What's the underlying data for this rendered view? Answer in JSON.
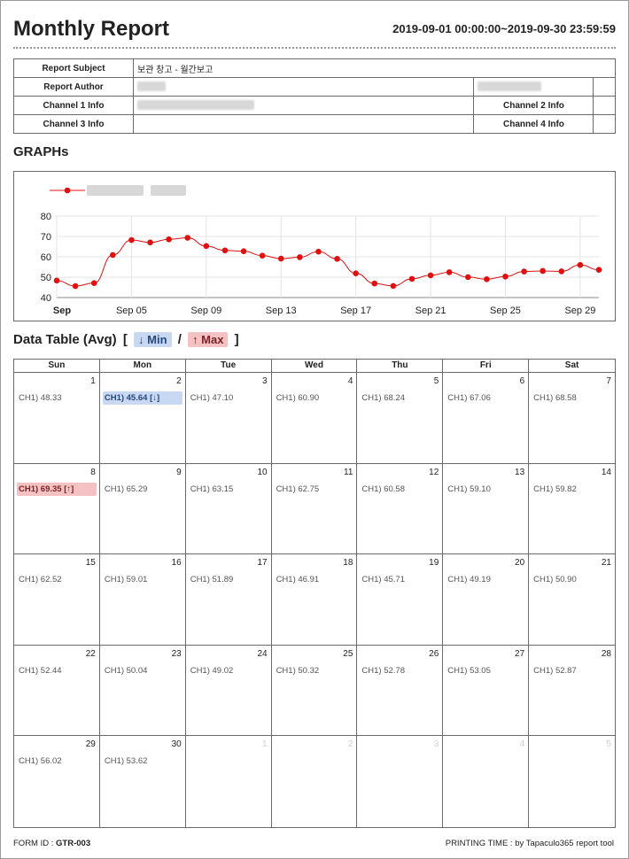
{
  "header": {
    "title": "Monthly Report",
    "date_range": "2019-09-01 00:00:00~2019-09-30 23:59:59"
  },
  "info": {
    "report_subject_label": "Report Subject",
    "report_subject_value": "보관 창고 - 월간보고",
    "report_author_label": "Report Author",
    "channel1_label": "Channel 1 Info",
    "channel2_label": "Channel 2 Info",
    "channel3_label": "Channel 3 Info",
    "channel4_label": "Channel 4 Info"
  },
  "graphs": {
    "heading": "GRAPHs"
  },
  "chart_data": {
    "type": "line",
    "color": "#e01010",
    "x": [
      1,
      2,
      3,
      4,
      5,
      6,
      7,
      8,
      9,
      10,
      11,
      12,
      13,
      14,
      15,
      16,
      17,
      18,
      19,
      20,
      21,
      22,
      23,
      24,
      25,
      26,
      27,
      28,
      29,
      30
    ],
    "series": [
      {
        "values": [
          48.33,
          45.64,
          47.1,
          60.9,
          68.24,
          67.06,
          68.58,
          69.35,
          65.29,
          63.15,
          62.75,
          60.58,
          59.1,
          59.82,
          62.52,
          59.01,
          51.89,
          46.91,
          45.71,
          49.19,
          50.9,
          52.44,
          50.04,
          49.02,
          50.32,
          52.78,
          53.05,
          52.87,
          56.02,
          53.62
        ]
      }
    ],
    "x_ticks": [
      {
        "x": 1,
        "label": "Sep"
      },
      {
        "x": 5,
        "label": "Sep 05"
      },
      {
        "x": 9,
        "label": "Sep 09"
      },
      {
        "x": 13,
        "label": "Sep 13"
      },
      {
        "x": 17,
        "label": "Sep 17"
      },
      {
        "x": 21,
        "label": "Sep 21"
      },
      {
        "x": 25,
        "label": "Sep 25"
      },
      {
        "x": 29,
        "label": "Sep 29"
      }
    ],
    "y_ticks": [
      40,
      50,
      60,
      70,
      80
    ],
    "ylim": [
      40,
      80
    ],
    "xlim": [
      1,
      30
    ],
    "grid": true,
    "legend_position": "top-left"
  },
  "table": {
    "heading": "Data Table (Avg)",
    "open_bracket": "[",
    "close_bracket": "]",
    "separator": "/",
    "min_label": "↓ Min",
    "max_label": "↑ Max"
  },
  "calendar": {
    "weekdays": [
      "Sun",
      "Mon",
      "Tue",
      "Wed",
      "Thu",
      "Fri",
      "Sat"
    ],
    "cells": [
      {
        "day": "1",
        "value": "CH1) 48.33"
      },
      {
        "day": "2",
        "value": "CH1) 45.64 [↓]",
        "mark": "min"
      },
      {
        "day": "3",
        "value": "CH1) 47.10"
      },
      {
        "day": "4",
        "value": "CH1) 60.90"
      },
      {
        "day": "5",
        "value": "CH1) 68.24"
      },
      {
        "day": "6",
        "value": "CH1) 67.06"
      },
      {
        "day": "7",
        "value": "CH1) 68.58"
      },
      {
        "day": "8",
        "value": "CH1) 69.35 [↑]",
        "mark": "max"
      },
      {
        "day": "9",
        "value": "CH1) 65.29"
      },
      {
        "day": "10",
        "value": "CH1) 63.15"
      },
      {
        "day": "11",
        "value": "CH1) 62.75"
      },
      {
        "day": "12",
        "value": "CH1) 60.58"
      },
      {
        "day": "13",
        "value": "CH1) 59.10"
      },
      {
        "day": "14",
        "value": "CH1) 59.82"
      },
      {
        "day": "15",
        "value": "CH1) 62.52"
      },
      {
        "day": "16",
        "value": "CH1) 59.01"
      },
      {
        "day": "17",
        "value": "CH1) 51.89"
      },
      {
        "day": "18",
        "value": "CH1) 46.91"
      },
      {
        "day": "19",
        "value": "CH1) 45.71"
      },
      {
        "day": "20",
        "value": "CH1) 49.19"
      },
      {
        "day": "21",
        "value": "CH1) 50.90"
      },
      {
        "day": "22",
        "value": "CH1) 52.44"
      },
      {
        "day": "23",
        "value": "CH1) 50.04"
      },
      {
        "day": "24",
        "value": "CH1) 49.02"
      },
      {
        "day": "25",
        "value": "CH1) 50.32"
      },
      {
        "day": "26",
        "value": "CH1) 52.78"
      },
      {
        "day": "27",
        "value": "CH1) 53.05"
      },
      {
        "day": "28",
        "value": "CH1) 52.87"
      },
      {
        "day": "29",
        "value": "CH1) 56.02"
      },
      {
        "day": "30",
        "value": "CH1) 53.62"
      },
      {
        "day": "1",
        "value": "",
        "faded": true
      },
      {
        "day": "2",
        "value": "",
        "faded": true
      },
      {
        "day": "3",
        "value": "",
        "faded": true
      },
      {
        "day": "4",
        "value": "",
        "faded": true
      },
      {
        "day": "5",
        "value": "",
        "faded": true
      }
    ]
  },
  "footer": {
    "form_id_label": "FORM ID :",
    "form_id": "GTR-003",
    "printing_time": "PRINTING TIME : by Tapaculo365 report tool"
  }
}
